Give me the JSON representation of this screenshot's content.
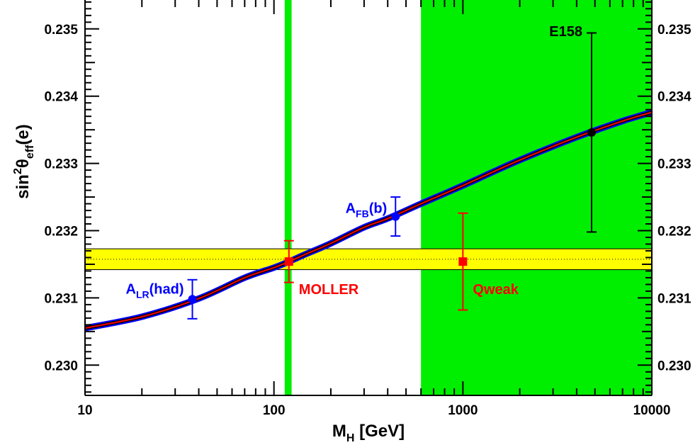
{
  "chart_data": {
    "type": "scatter",
    "xlabel": {
      "main": "M",
      "sub": "H",
      "rest": " [GeV]"
    },
    "ylabel": {
      "main": "sin",
      "sup": "2",
      "theta": "θ",
      "sub": "eff",
      "rest": "(e)"
    },
    "x_scale": "log",
    "xlim": [
      10,
      10000
    ],
    "ylim": [
      0.22955,
      0.23543
    ],
    "x_tick_labels": [
      "10",
      "100",
      "1000",
      "10000"
    ],
    "y_tick_labels": [
      "0.230",
      "0.231",
      "0.232",
      "0.233",
      "0.234",
      "0.235"
    ],
    "y_ticks": [
      0.23,
      0.231,
      0.232,
      0.233,
      0.234,
      0.235
    ],
    "shaded_regions": [
      {
        "axis": "x",
        "range": [
          114,
          124
        ],
        "color": "#00ee00"
      },
      {
        "axis": "x",
        "range": [
          600,
          10000
        ],
        "color": "#00ee00"
      },
      {
        "axis": "y",
        "range": [
          0.23142,
          0.23173
        ],
        "color": "#ffff00",
        "center": 0.231575
      }
    ],
    "curve": {
      "colors": [
        "#0000ff",
        "#000000",
        "#ff0000"
      ],
      "x": [
        10,
        20,
        40,
        70,
        100,
        120,
        150,
        200,
        300,
        400,
        600,
        1000,
        2000,
        4000,
        7000,
        10000
      ],
      "y": [
        0.23055,
        0.23072,
        0.23099,
        0.2313,
        0.23145,
        0.23154,
        0.23166,
        0.23181,
        0.23205,
        0.23218,
        0.2324,
        0.23267,
        0.23305,
        0.23339,
        0.23363,
        0.23376
      ]
    },
    "points": [
      {
        "label_main": "A",
        "label_sub": "LR",
        "label_rest": "(had)",
        "x": 37,
        "y": 0.23098,
        "err": 0.00029,
        "marker": "circle",
        "color": "#0000ff"
      },
      {
        "label_main": "A",
        "label_sub": "FB",
        "label_rest": "(b)",
        "x": 440,
        "y": 0.23221,
        "err": 0.00029,
        "marker": "circle",
        "color": "#0000ff"
      },
      {
        "label_main": "MOLLER",
        "label_sub": "",
        "label_rest": "",
        "x": 120,
        "y": 0.23154,
        "err": 0.00031,
        "marker": "square",
        "color": "#ff0000"
      },
      {
        "label_main": "Qweak",
        "label_sub": "",
        "label_rest": "",
        "x": 1000,
        "y": 0.23154,
        "err": 0.00072,
        "marker": "square",
        "color": "#ff0000"
      },
      {
        "label_main": "E158",
        "label_sub": "",
        "label_rest": "",
        "x": 4800,
        "y": 0.23346,
        "err": 0.00148,
        "marker": "circle",
        "color": "#000000"
      }
    ]
  }
}
